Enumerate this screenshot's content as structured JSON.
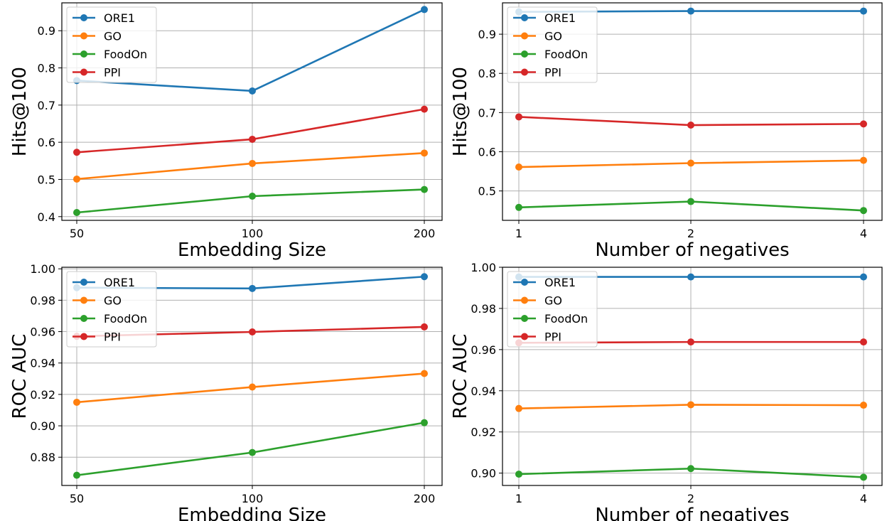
{
  "figure": {
    "legend_placement": "upper-left",
    "grid": true,
    "colors": {
      "ORE1": "#1f77b4",
      "GO": "#ff7f0e",
      "FoodOn": "#2ca02c",
      "PPI": "#d62728"
    }
  },
  "chart_data": [
    {
      "type": "line",
      "xlabel": "Embedding Size",
      "ylabel": "Hits@100",
      "categories": [
        "50",
        "100",
        "200"
      ],
      "yticks": [
        0.4,
        0.5,
        0.6,
        0.7,
        0.8,
        0.9
      ],
      "ylim": [
        0.39,
        0.975
      ],
      "grid": true,
      "legend": "upper-left",
      "series": [
        {
          "name": "ORE1",
          "values": [
            0.766,
            0.738,
            0.957
          ]
        },
        {
          "name": "GO",
          "values": [
            0.501,
            0.543,
            0.571
          ]
        },
        {
          "name": "FoodOn",
          "values": [
            0.411,
            0.455,
            0.473
          ]
        },
        {
          "name": "PPI",
          "values": [
            0.573,
            0.608,
            0.689
          ]
        }
      ]
    },
    {
      "type": "line",
      "xlabel": "Number of negatives",
      "ylabel": "Hits@100",
      "categories": [
        "1",
        "2",
        "4"
      ],
      "yticks": [
        0.5,
        0.6,
        0.7,
        0.8,
        0.9
      ],
      "ylim": [
        0.425,
        0.98
      ],
      "grid": true,
      "legend": "upper-left",
      "series": [
        {
          "name": "ORE1",
          "values": [
            0.957,
            0.959,
            0.959
          ]
        },
        {
          "name": "GO",
          "values": [
            0.561,
            0.571,
            0.578
          ]
        },
        {
          "name": "FoodOn",
          "values": [
            0.458,
            0.473,
            0.45
          ]
        },
        {
          "name": "PPI",
          "values": [
            0.689,
            0.668,
            0.671
          ]
        }
      ]
    },
    {
      "type": "line",
      "xlabel": "Embedding Size",
      "ylabel": "ROC AUC",
      "categories": [
        "50",
        "100",
        "200"
      ],
      "yticks": [
        0.88,
        0.9,
        0.92,
        0.94,
        0.96,
        0.98,
        1.0
      ],
      "ytick_labels": [
        "0.88",
        "0.90",
        "0.92",
        "0.94",
        "0.96",
        "0.98",
        "1.00"
      ],
      "ylim": [
        0.862,
        1.001
      ],
      "grid": true,
      "legend": "upper-left",
      "series": [
        {
          "name": "ORE1",
          "values": [
            0.988,
            0.9875,
            0.995
          ]
        },
        {
          "name": "GO",
          "values": [
            0.915,
            0.9247,
            0.9333
          ]
        },
        {
          "name": "FoodOn",
          "values": [
            0.8685,
            0.883,
            0.902
          ]
        },
        {
          "name": "PPI",
          "values": [
            0.957,
            0.9598,
            0.963
          ]
        }
      ]
    },
    {
      "type": "line",
      "xlabel": "Number of negatives",
      "ylabel": "ROC AUC",
      "categories": [
        "1",
        "2",
        "4"
      ],
      "yticks": [
        0.9,
        0.92,
        0.94,
        0.96,
        0.98,
        1.0
      ],
      "ytick_labels": [
        "0.90",
        "0.92",
        "0.94",
        "0.96",
        "0.98",
        "1.00"
      ],
      "ylim": [
        0.894,
        1.0
      ],
      "grid": true,
      "legend": "upper-left",
      "series": [
        {
          "name": "ORE1",
          "values": [
            0.9953,
            0.9953,
            0.9953
          ]
        },
        {
          "name": "GO",
          "values": [
            0.9314,
            0.9332,
            0.933
          ]
        },
        {
          "name": "FoodOn",
          "values": [
            0.8995,
            0.9022,
            0.898
          ]
        },
        {
          "name": "PPI",
          "values": [
            0.9633,
            0.9637,
            0.9637
          ]
        }
      ]
    }
  ]
}
